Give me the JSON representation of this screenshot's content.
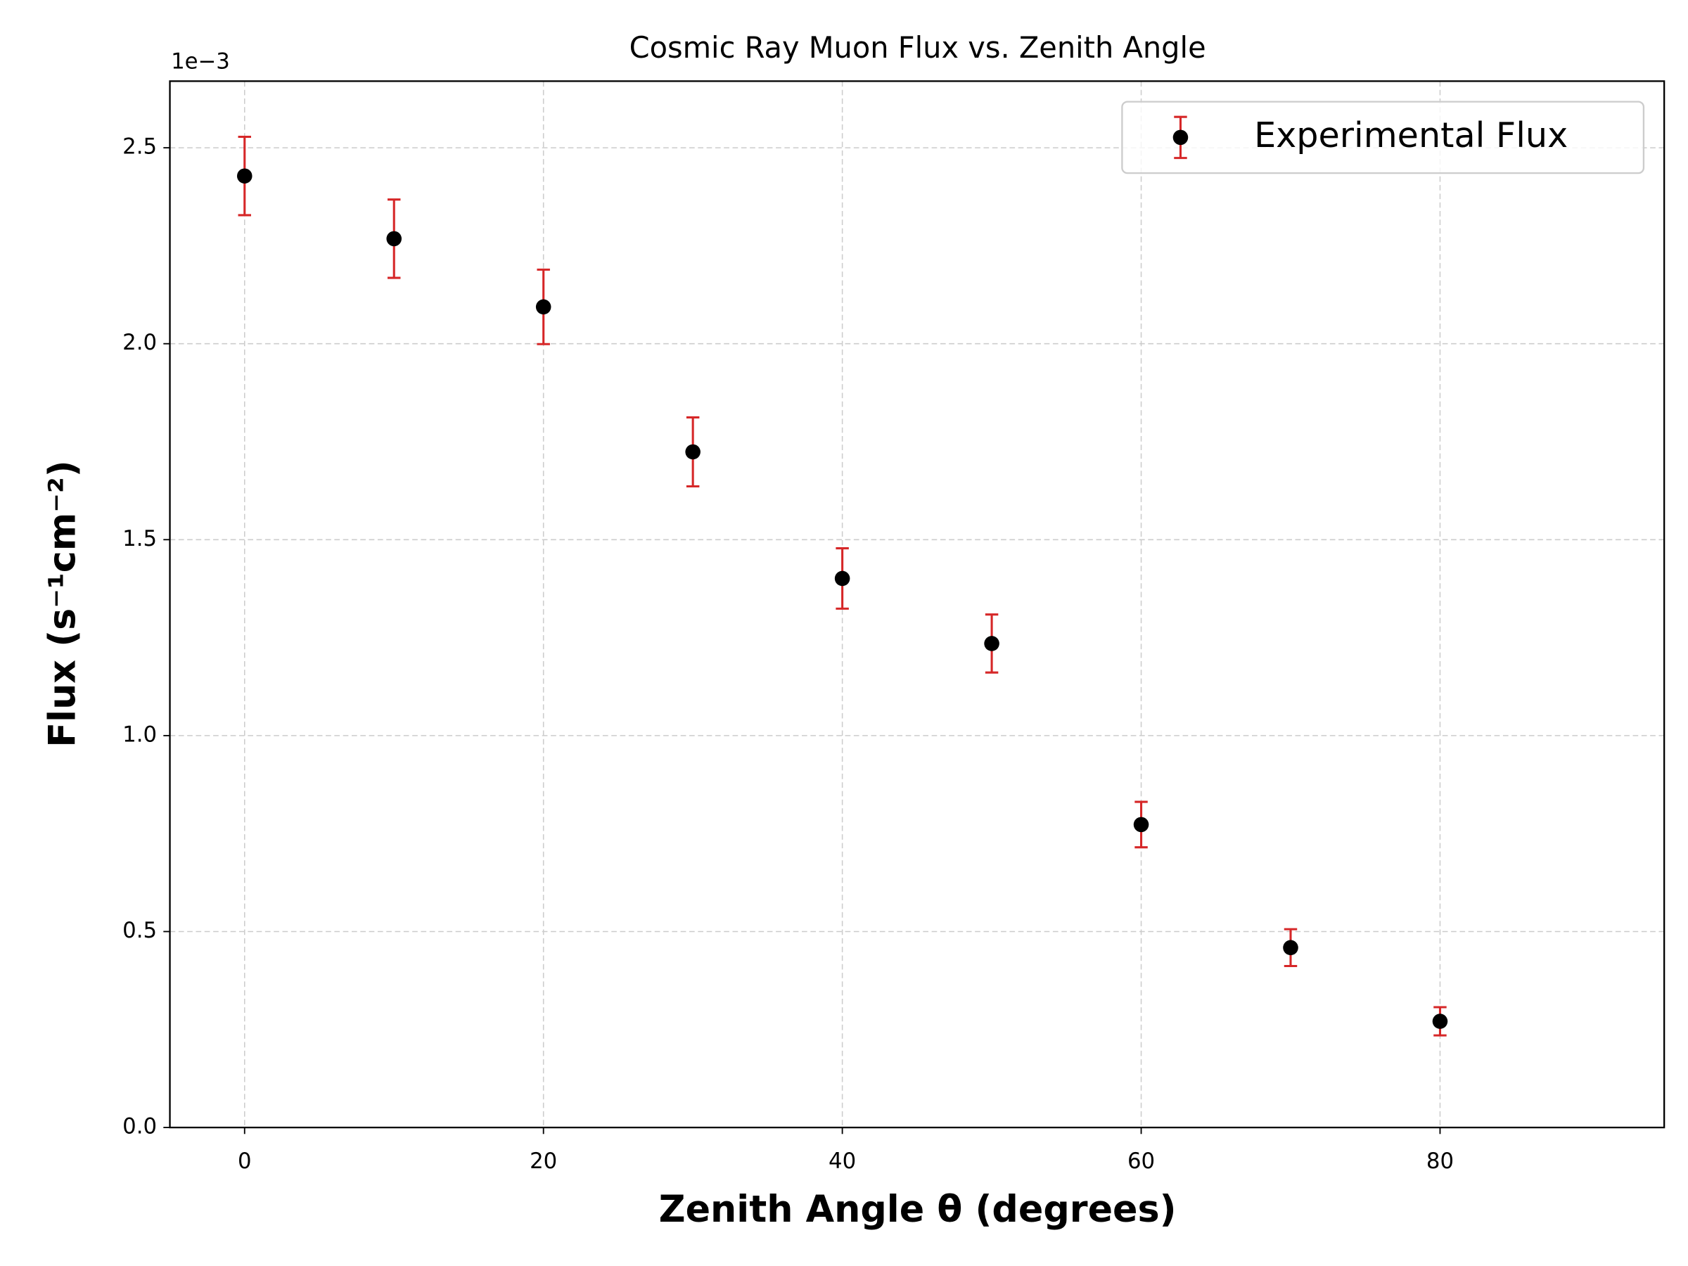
{
  "chart_data": {
    "type": "errorbar",
    "title": "Cosmic Ray Muon Flux vs. Zenith Angle",
    "x_label": "Zenith Angle θ (degrees)",
    "y_label": "Flux (s⁻¹cm⁻²)",
    "y_offset_label": "1e−3",
    "x": [
      0,
      10,
      20,
      30,
      40,
      50,
      60,
      70,
      80
    ],
    "series": [
      {
        "name": "Experimental Flux",
        "color": "#000000",
        "error_color": "#d62728",
        "values": [
          2.428,
          2.268,
          2.094,
          1.724,
          1.401,
          1.235,
          0.773,
          0.459,
          0.271
        ],
        "errors": [
          0.1,
          0.1,
          0.095,
          0.088,
          0.077,
          0.074,
          0.058,
          0.047,
          0.036
        ]
      }
    ],
    "xlim": [
      -5,
      95
    ],
    "xticks": [
      0,
      20,
      40,
      60,
      80
    ],
    "ylim": [
      0,
      2.67
    ],
    "yticks": [
      {
        "value": 0,
        "label": "0.0"
      },
      0.5,
      {
        "value": 1,
        "label": "1.0"
      },
      1.5,
      {
        "value": 2,
        "label": "2.0"
      },
      2.5
    ],
    "grid": true,
    "legend": "upper right"
  }
}
